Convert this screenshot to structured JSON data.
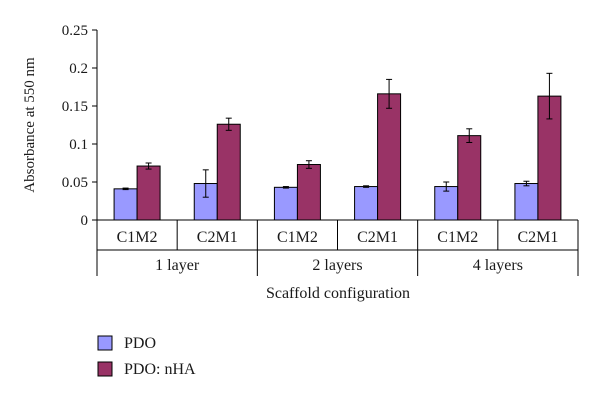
{
  "chart_data": {
    "type": "bar",
    "categories": [
      "C1M2",
      "C2M1",
      "C1M2",
      "C2M1",
      "C1M2",
      "C2M1"
    ],
    "groups": [
      {
        "label": "1 layer",
        "span": [
          0,
          1
        ]
      },
      {
        "label": "2 layers",
        "span": [
          2,
          3
        ]
      },
      {
        "label": "4 layers",
        "span": [
          4,
          5
        ]
      }
    ],
    "series": [
      {
        "name": "PDO",
        "color": "#9999ff",
        "values": [
          0.041,
          0.048,
          0.043,
          0.044,
          0.044,
          0.048
        ],
        "errors": [
          0.001,
          0.018,
          0.001,
          0.001,
          0.006,
          0.003
        ]
      },
      {
        "name": "PDO: nHA",
        "color": "#993366",
        "values": [
          0.071,
          0.126,
          0.073,
          0.166,
          0.111,
          0.163
        ],
        "errors": [
          0.004,
          0.008,
          0.005,
          0.019,
          0.009,
          0.03
        ]
      }
    ],
    "xlabel": "Scaffold configuration",
    "ylabel": "Absorbance at 550 nm",
    "ylim": [
      0,
      0.25
    ],
    "yticks": [
      0,
      0.05,
      0.1,
      0.15,
      0.2,
      0.25
    ],
    "ytick_labels": [
      "0",
      "0.05",
      "0.1",
      "0.15",
      "0.2",
      "0.25"
    ],
    "grid": false,
    "legend": "bottom-left"
  }
}
